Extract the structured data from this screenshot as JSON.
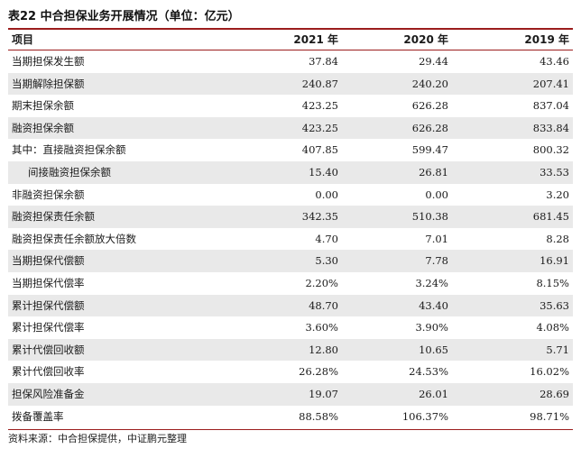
{
  "table": {
    "title": "表22 中合担保业务开展情况（单位：亿元）",
    "headers": [
      "项目",
      "2021 年",
      "2020 年",
      "2019 年"
    ],
    "rows": [
      {
        "label": "当期担保发生额",
        "values": [
          "37.84",
          "29.44",
          "43.46"
        ]
      },
      {
        "label": "当期解除担保额",
        "values": [
          "240.87",
          "240.20",
          "207.41"
        ]
      },
      {
        "label": "期末担保余额",
        "values": [
          "423.25",
          "626.28",
          "837.04"
        ]
      },
      {
        "label": "融资担保余额",
        "values": [
          "423.25",
          "626.28",
          "833.84"
        ]
      },
      {
        "label": "其中：直接融资担保余额",
        "values": [
          "407.85",
          "599.47",
          "800.32"
        ]
      },
      {
        "label": "间接融资担保余额",
        "values": [
          "15.40",
          "26.81",
          "33.53"
        ],
        "indent": true
      },
      {
        "label": "非融资担保余额",
        "values": [
          "0.00",
          "0.00",
          "3.20"
        ]
      },
      {
        "label": "融资担保责任余额",
        "values": [
          "342.35",
          "510.38",
          "681.45"
        ]
      },
      {
        "label": "融资担保责任余额放大倍数",
        "values": [
          "4.70",
          "7.01",
          "8.28"
        ]
      },
      {
        "label": "当期担保代偿额",
        "values": [
          "5.30",
          "7.78",
          "16.91"
        ]
      },
      {
        "label": "当期担保代偿率",
        "values": [
          "2.20%",
          "3.24%",
          "8.15%"
        ]
      },
      {
        "label": "累计担保代偿额",
        "values": [
          "48.70",
          "43.40",
          "35.63"
        ]
      },
      {
        "label": "累计担保代偿率",
        "values": [
          "3.60%",
          "3.90%",
          "4.08%"
        ]
      },
      {
        "label": "累计代偿回收额",
        "values": [
          "12.80",
          "10.65",
          "5.71"
        ]
      },
      {
        "label": "累计代偿回收率",
        "values": [
          "26.28%",
          "24.53%",
          "16.02%"
        ]
      },
      {
        "label": "担保风险准备金",
        "values": [
          "19.07",
          "26.01",
          "28.69"
        ]
      },
      {
        "label": "拨备覆盖率",
        "values": [
          "88.58%",
          "106.37%",
          "98.71%"
        ]
      }
    ]
  },
  "source": "资料来源：中合担保提供，中证鹏元整理",
  "colors": {
    "rule": "#9b1c1c",
    "stripe": "#e9e9e9"
  }
}
